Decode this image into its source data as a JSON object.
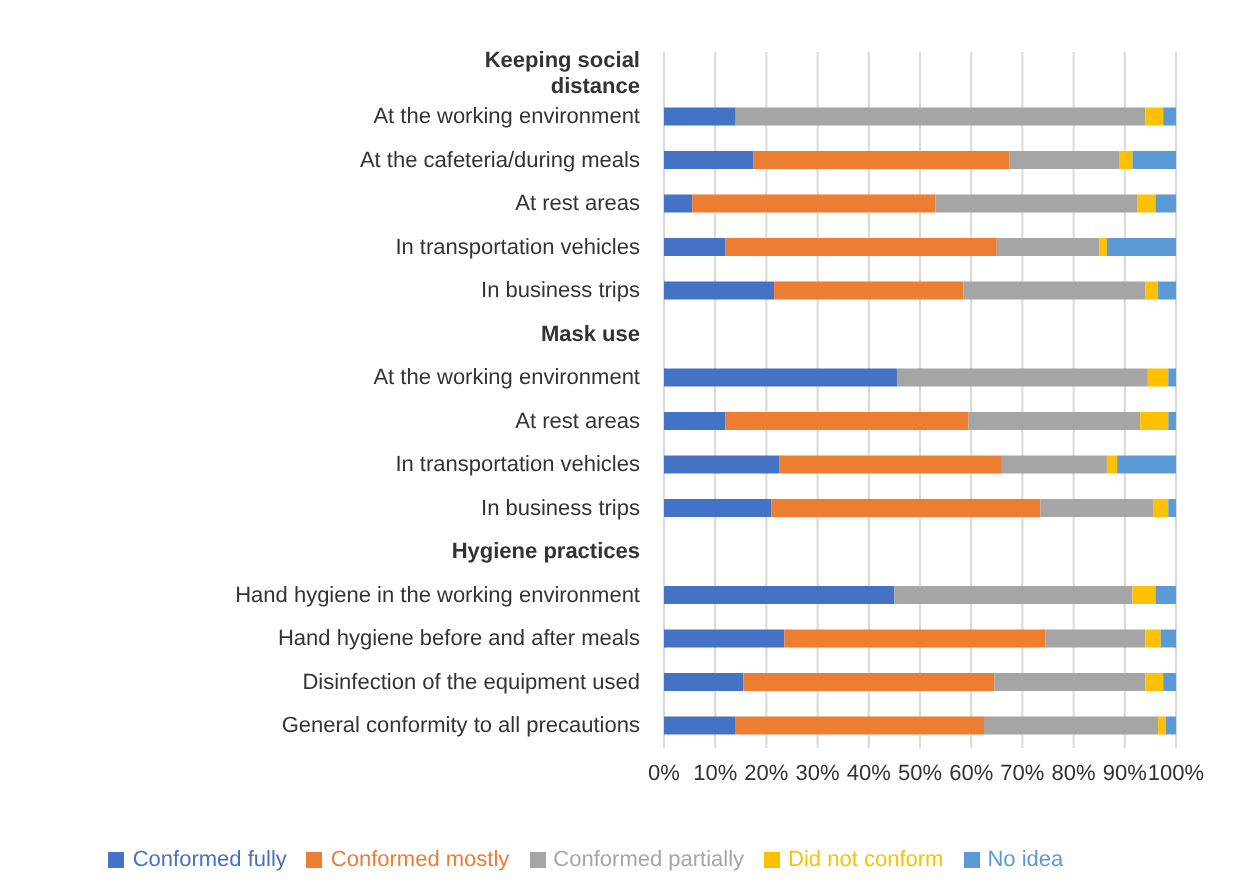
{
  "chart_data": {
    "type": "bar",
    "orientation": "horizontal",
    "stacked": true,
    "categories": [
      "Keeping social distance",
      "At the working environment",
      "At the cafeteria/during meals",
      "At rest areas",
      "In transportation vehicles",
      "In business trips",
      "Mask use",
      "At the working environment",
      "At rest areas",
      "In transportation vehicles",
      "In business trips",
      "Hygiene practices",
      "Hand hygiene in the working environment",
      "Hand hygiene before and after meals",
      "Disinfection of the equipment used",
      "General conformity to all precautions"
    ],
    "series": [
      {
        "name": "Conformed fully",
        "color": "#4472c4",
        "values": [
          null,
          14,
          17.5,
          5.5,
          12,
          21.5,
          null,
          45.5,
          12,
          22.5,
          21,
          null,
          45,
          23.5,
          15.5,
          14
        ]
      },
      {
        "name": "Conformed mostly",
        "color": "#ed7d31",
        "values": [
          null,
          0,
          50,
          47.5,
          53,
          37,
          null,
          0,
          47.5,
          43.5,
          52.5,
          null,
          0,
          51,
          49,
          48.5
        ]
      },
      {
        "name": "Conformed partially",
        "color": "#a5a5a5",
        "values": [
          null,
          80,
          21.5,
          39.5,
          20,
          35.5,
          null,
          49,
          33.5,
          20.5,
          22,
          null,
          46.5,
          19.5,
          29.5,
          34
        ]
      },
      {
        "name": "Did not conform",
        "color": "#ffc000",
        "values": [
          null,
          3.5,
          2.5,
          3.5,
          1.5,
          2.5,
          null,
          4,
          5.5,
          2,
          3,
          null,
          4.5,
          3,
          3.5,
          1.5
        ]
      },
      {
        "name": "No idea",
        "color": "#5b9bd5",
        "values": [
          null,
          2.5,
          8.5,
          4,
          13.5,
          3.5,
          null,
          1.5,
          1.5,
          11.5,
          1.5,
          null,
          4,
          3,
          2.5,
          2
        ]
      }
    ],
    "xlim": [
      0,
      100
    ],
    "xticks": [
      {
        "value": 0,
        "label": "0%"
      },
      {
        "value": 10,
        "label": "10%"
      },
      {
        "value": 20,
        "label": "20%"
      },
      {
        "value": 30,
        "label": "30%"
      },
      {
        "value": 40,
        "label": "40%"
      },
      {
        "value": 50,
        "label": "50%"
      },
      {
        "value": 60,
        "label": "60%"
      },
      {
        "value": 70,
        "label": "70%"
      },
      {
        "value": 80,
        "label": "80%"
      },
      {
        "value": 90,
        "label": "90%"
      },
      {
        "value": 100,
        "label": "100%"
      }
    ],
    "grid": "x",
    "legend": "bottom"
  }
}
